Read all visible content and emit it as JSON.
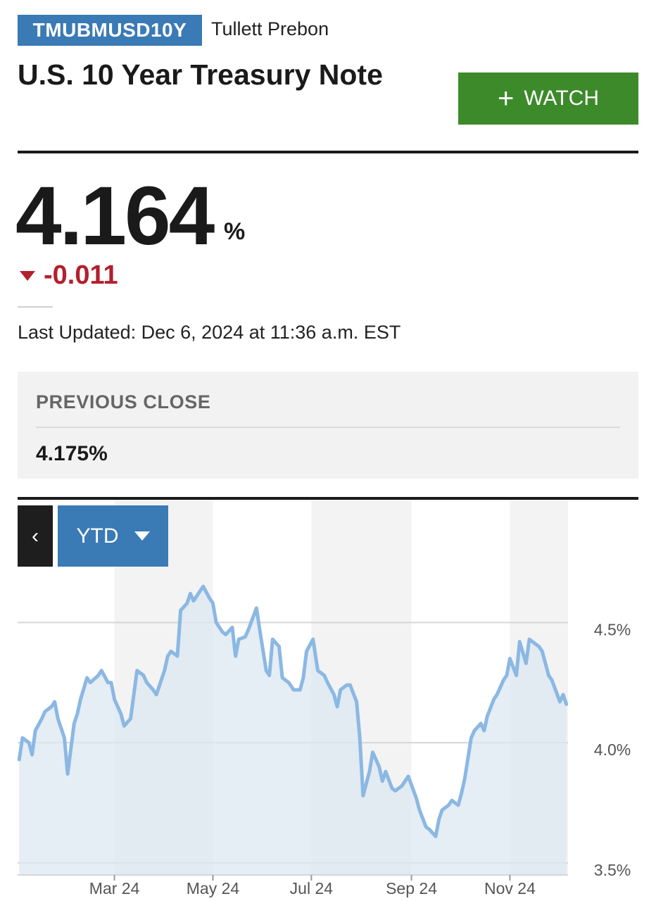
{
  "header": {
    "ticker": "TMUBMUSD10Y",
    "source": "Tullett Prebon",
    "title": "U.S. 10 Year Treasury Note",
    "watch_label": "WATCH"
  },
  "quote": {
    "price": "4.164",
    "unit": "%",
    "change": "-0.011",
    "direction_icon": "down-triangle-icon",
    "last_updated": "Last Updated: Dec 6, 2024 at 11:36 a.m. EST"
  },
  "previous_close": {
    "label": "PREVIOUS CLOSE",
    "value": "4.175%"
  },
  "chart_controls": {
    "back_label": "‹",
    "range_label": "YTD"
  },
  "colors": {
    "accent_blue": "#3a7ab5",
    "watch_green": "#3d8a2b",
    "down_red": "#b3202e",
    "line_blue": "#8bb8e3",
    "area_fill": "#dce7f1"
  },
  "chart_data": {
    "type": "area",
    "x_tick_labels": [
      "Mar 24",
      "May 24",
      "Jul 24",
      "Sep 24",
      "Nov 24"
    ],
    "y_tick_labels": [
      "4.5%",
      "4.0%",
      "3.5%"
    ],
    "y_ticks": [
      4.5,
      4.0,
      3.5
    ],
    "ylim": [
      3.45,
      4.7
    ],
    "grid": true,
    "x": [
      "2024-01-02",
      "2024-01-04",
      "2024-01-08",
      "2024-01-10",
      "2024-01-12",
      "2024-01-16",
      "2024-01-18",
      "2024-01-22",
      "2024-01-24",
      "2024-01-26",
      "2024-01-30",
      "2024-02-01",
      "2024-02-05",
      "2024-02-07",
      "2024-02-09",
      "2024-02-13",
      "2024-02-15",
      "2024-02-20",
      "2024-02-22",
      "2024-02-26",
      "2024-02-28",
      "2024-03-01",
      "2024-03-05",
      "2024-03-07",
      "2024-03-11",
      "2024-03-13",
      "2024-03-15",
      "2024-03-19",
      "2024-03-21",
      "2024-03-25",
      "2024-03-27",
      "2024-04-01",
      "2024-04-03",
      "2024-04-05",
      "2024-04-09",
      "2024-04-11",
      "2024-04-15",
      "2024-04-17",
      "2024-04-19",
      "2024-04-23",
      "2024-04-25",
      "2024-04-29",
      "2024-05-01",
      "2024-05-03",
      "2024-05-07",
      "2024-05-09",
      "2024-05-13",
      "2024-05-15",
      "2024-05-17",
      "2024-05-21",
      "2024-05-23",
      "2024-05-28",
      "2024-05-30",
      "2024-06-03",
      "2024-06-05",
      "2024-06-07",
      "2024-06-11",
      "2024-06-13",
      "2024-06-17",
      "2024-06-20",
      "2024-06-24",
      "2024-06-26",
      "2024-06-28",
      "2024-07-02",
      "2024-07-05",
      "2024-07-09",
      "2024-07-11",
      "2024-07-15",
      "2024-07-17",
      "2024-07-19",
      "2024-07-23",
      "2024-07-25",
      "2024-07-29",
      "2024-07-31",
      "2024-08-02",
      "2024-08-06",
      "2024-08-08",
      "2024-08-12",
      "2024-08-14",
      "2024-08-16",
      "2024-08-20",
      "2024-08-22",
      "2024-08-26",
      "2024-08-28",
      "2024-08-30",
      "2024-09-04",
      "2024-09-06",
      "2024-09-10",
      "2024-09-12",
      "2024-09-16",
      "2024-09-18",
      "2024-09-20",
      "2024-09-24",
      "2024-09-26",
      "2024-09-30",
      "2024-10-02",
      "2024-10-04",
      "2024-10-08",
      "2024-10-10",
      "2024-10-14",
      "2024-10-16",
      "2024-10-18",
      "2024-10-22",
      "2024-10-24",
      "2024-10-28",
      "2024-10-30",
      "2024-11-01",
      "2024-11-05",
      "2024-11-07",
      "2024-11-11",
      "2024-11-13",
      "2024-11-15",
      "2024-11-19",
      "2024-11-21",
      "2024-11-25",
      "2024-11-27",
      "2024-12-02",
      "2024-12-04",
      "2024-12-06"
    ],
    "values": [
      3.93,
      4.02,
      4.0,
      3.95,
      4.05,
      4.1,
      4.13,
      4.15,
      4.17,
      4.1,
      4.02,
      3.87,
      4.08,
      4.12,
      4.18,
      4.27,
      4.25,
      4.28,
      4.3,
      4.25,
      4.25,
      4.18,
      4.12,
      4.07,
      4.1,
      4.2,
      4.3,
      4.28,
      4.25,
      4.22,
      4.2,
      4.3,
      4.36,
      4.38,
      4.36,
      4.55,
      4.58,
      4.62,
      4.59,
      4.63,
      4.65,
      4.6,
      4.58,
      4.5,
      4.46,
      4.45,
      4.48,
      4.36,
      4.43,
      4.44,
      4.47,
      4.56,
      4.47,
      4.3,
      4.28,
      4.43,
      4.4,
      4.27,
      4.25,
      4.22,
      4.22,
      4.27,
      4.38,
      4.43,
      4.3,
      4.28,
      4.25,
      4.2,
      4.15,
      4.22,
      4.24,
      4.24,
      4.17,
      4.02,
      3.78,
      3.88,
      3.96,
      3.9,
      3.84,
      3.88,
      3.81,
      3.8,
      3.82,
      3.84,
      3.86,
      3.77,
      3.72,
      3.65,
      3.64,
      3.61,
      3.68,
      3.72,
      3.74,
      3.76,
      3.74,
      3.79,
      3.85,
      4.02,
      4.05,
      4.08,
      4.05,
      4.11,
      4.18,
      4.2,
      4.26,
      4.28,
      4.35,
      4.28,
      4.42,
      4.33,
      4.43,
      4.42,
      4.4,
      4.38,
      4.28,
      4.26,
      4.17,
      4.2,
      4.16
    ]
  }
}
